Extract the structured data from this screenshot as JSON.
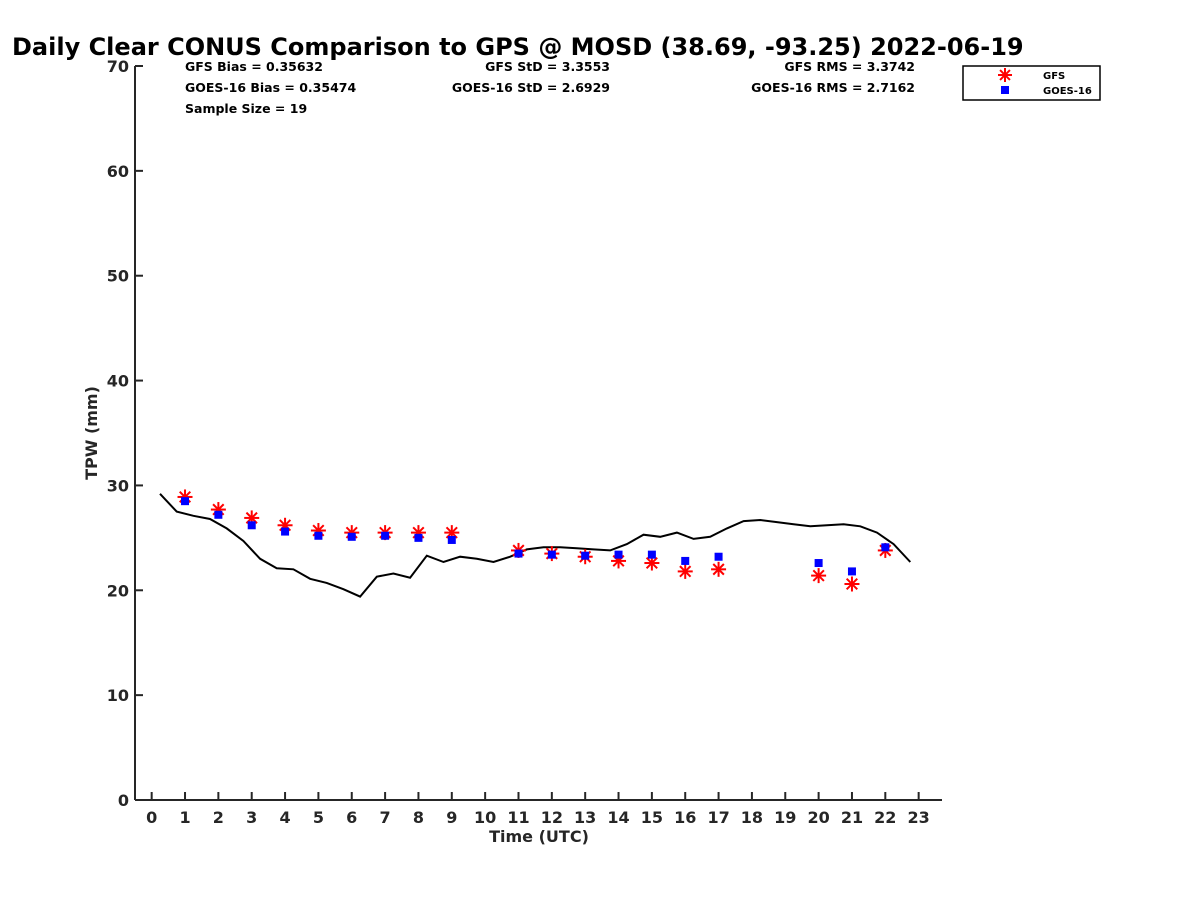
{
  "chart_data": {
    "type": "scatter",
    "title": "Daily Clear CONUS Comparison to GPS @ MOSD (38.69, -93.25) 2022-06-19",
    "xlabel": "Time (UTC)",
    "ylabel": "TPW (mm)",
    "xlim": [
      -0.5,
      23.7
    ],
    "ylim": [
      0,
      70
    ],
    "x_ticks": [
      "0",
      "1",
      "2",
      "3",
      "4",
      "5",
      "6",
      "7",
      "8",
      "9",
      "10",
      "11",
      "12",
      "13",
      "14",
      "15",
      "16",
      "17",
      "18",
      "19",
      "20",
      "21",
      "22",
      "23"
    ],
    "y_ticks": [
      "0",
      "10",
      "20",
      "30",
      "40",
      "50",
      "60",
      "70"
    ],
    "stats": {
      "gfs_bias": "GFS Bias = 0.35632",
      "goes_bias": "GOES-16 Bias = 0.35474",
      "sample_size": "Sample Size = 19",
      "gfs_std": "GFS StD = 3.3553",
      "goes_std": "GOES-16 StD = 2.6929",
      "gfs_rms": "GFS RMS = 3.3742",
      "goes_rms": "GOES-16 RMS = 2.7162"
    },
    "legend": {
      "position": "top-right",
      "entries": [
        "GFS",
        "GOES-16"
      ]
    },
    "series": [
      {
        "name": "GPS",
        "style": "line",
        "color": "#000000",
        "x": [
          0.25,
          0.75,
          1.25,
          1.75,
          2.25,
          2.75,
          3.25,
          3.75,
          4.25,
          4.75,
          5.25,
          5.75,
          6.25,
          6.75,
          7.25,
          7.75,
          8.25,
          8.75,
          9.25,
          9.75,
          10.25,
          10.75,
          11.25,
          11.75,
          12.25,
          12.75,
          13.25,
          13.75,
          14.25,
          14.75,
          15.25,
          15.75,
          16.25,
          16.75,
          17.25,
          17.75,
          18.25,
          18.75,
          19.25,
          19.75,
          20.25,
          20.75,
          21.25,
          21.75,
          22.25,
          22.75
        ],
        "y": [
          29.2,
          27.5,
          27.1,
          26.8,
          25.9,
          24.7,
          23.0,
          22.1,
          22.0,
          21.1,
          20.7,
          20.1,
          19.4,
          21.3,
          21.6,
          21.2,
          23.3,
          22.7,
          23.2,
          23.0,
          22.7,
          23.2,
          23.9,
          24.1,
          24.1,
          24.0,
          23.9,
          23.8,
          24.4,
          25.3,
          25.1,
          25.5,
          24.9,
          25.1,
          25.9,
          26.6,
          26.7,
          26.5,
          26.3,
          26.1,
          26.2,
          26.3,
          26.1,
          25.5,
          24.4,
          22.7
        ]
      },
      {
        "name": "GFS",
        "style": "asterisk",
        "color": "#ff0000",
        "x": [
          1,
          2,
          3,
          4,
          5,
          6,
          7,
          8,
          9,
          11,
          12,
          13,
          14,
          15,
          16,
          17,
          20,
          21,
          22
        ],
        "y": [
          28.9,
          27.7,
          26.9,
          26.2,
          25.7,
          25.5,
          25.5,
          25.5,
          25.5,
          23.8,
          23.5,
          23.2,
          22.8,
          22.6,
          21.8,
          22.0,
          21.4,
          20.6,
          23.8
        ]
      },
      {
        "name": "GOES-16",
        "style": "square",
        "color": "#0000ff",
        "x": [
          1,
          2,
          3,
          4,
          5,
          6,
          7,
          8,
          9,
          11,
          12,
          13,
          14,
          15,
          16,
          17,
          20,
          21,
          22
        ],
        "y": [
          28.5,
          27.2,
          26.2,
          25.6,
          25.2,
          25.1,
          25.2,
          25.0,
          24.8,
          23.5,
          23.4,
          23.3,
          23.4,
          23.4,
          22.8,
          23.2,
          22.6,
          21.8,
          24.1
        ]
      }
    ]
  }
}
